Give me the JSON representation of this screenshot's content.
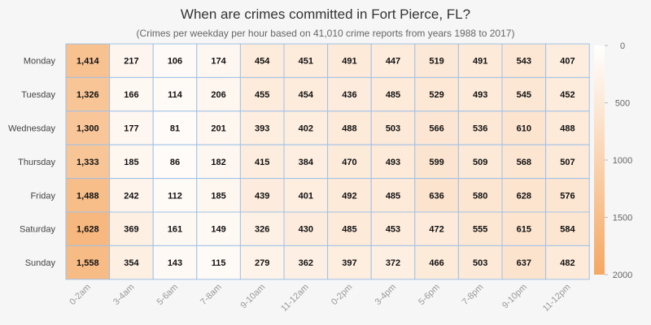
{
  "chart_data": {
    "type": "heatmap",
    "title": "When are crimes committed in Fort Pierce, FL?",
    "subtitle": "(Crimes per weekday per hour based on 41,010 crime reports from years 1988 to 2017)",
    "rows": [
      "Monday",
      "Tuesday",
      "Wednesday",
      "Thursday",
      "Friday",
      "Saturday",
      "Sunday"
    ],
    "columns": [
      "0-2am",
      "3-4am",
      "5-6am",
      "7-8am",
      "9-10am",
      "11-12am",
      "0-2pm",
      "3-4pm",
      "5-6pm",
      "7-8pm",
      "9-10pm",
      "11-12pm"
    ],
    "values": [
      [
        1414,
        217,
        106,
        174,
        454,
        451,
        491,
        447,
        519,
        491,
        543,
        407
      ],
      [
        1326,
        166,
        114,
        206,
        455,
        454,
        436,
        485,
        529,
        493,
        545,
        452
      ],
      [
        1300,
        177,
        81,
        201,
        393,
        402,
        488,
        503,
        566,
        536,
        610,
        488
      ],
      [
        1333,
        185,
        86,
        182,
        415,
        384,
        470,
        493,
        599,
        509,
        568,
        507
      ],
      [
        1488,
        242,
        112,
        185,
        439,
        401,
        492,
        485,
        636,
        580,
        628,
        576
      ],
      [
        1628,
        369,
        161,
        149,
        326,
        430,
        485,
        453,
        472,
        555,
        615,
        584
      ],
      [
        1558,
        354,
        143,
        115,
        279,
        362,
        397,
        372,
        466,
        503,
        637,
        482
      ]
    ],
    "colorbar": {
      "range": [
        0,
        2000
      ],
      "ticks": [
        0,
        500,
        1000,
        1500,
        2000
      ],
      "colors": {
        "low": "#ffffff",
        "high": "#f5a862"
      }
    },
    "colors": {
      "grid": "#9fc1e6",
      "background": "#f6f6f6"
    }
  }
}
